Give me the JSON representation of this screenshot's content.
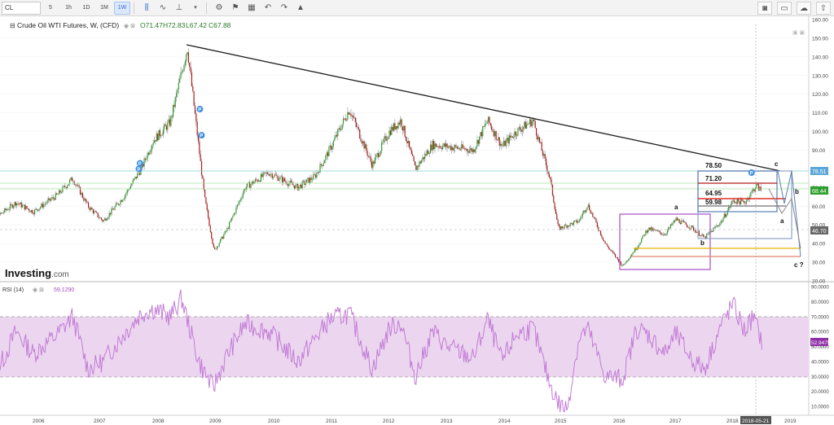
{
  "toolbar": {
    "symbol": "CL",
    "intervals": [
      "5",
      "1h",
      "1D",
      "1W"
    ],
    "extra_label": "1M",
    "active_interval": "1W",
    "icons": [
      "bar-style-icon",
      "indicators-icon",
      "compare-icon",
      "settings-icon",
      "alert-icon",
      "layout-icon",
      "undo-icon",
      "redo-icon",
      "tree-icon"
    ],
    "right_icons": [
      "camera-icon",
      "chart-layout-icon",
      "cloud-icon",
      "cloud-upload-icon"
    ]
  },
  "header": {
    "title": "Crude Oil WTI Futures, W, (CFD)",
    "open": "O71.47",
    "high": "H72.83",
    "low": "L67.42",
    "close": "C67.88"
  },
  "watermark": {
    "brand": "Investing",
    "suffix": ".com"
  },
  "rsi_header": {
    "label": "RSI (14)",
    "value": "59.1290"
  },
  "colors": {
    "up": "#2ca02c",
    "down": "#b11c1c",
    "rsi_line": "#c27bd6",
    "rsi_band": "#ecd6ef",
    "trendline": "#222222",
    "box_purple": "#a64cc4",
    "box_blue": "#5b7fb5",
    "accent": "#3d8fe0"
  },
  "chart_data": [
    {
      "type": "candlestick",
      "title": "Crude Oil WTI Futures, W, (CFD)",
      "x_ticks": [
        "2006",
        "2007",
        "2008",
        "2009",
        "2010",
        "2011",
        "2012",
        "2013",
        "2014",
        "2015",
        "2016",
        "2017",
        "2018",
        "2018-05-21",
        "2019"
      ],
      "y_ticks": [
        20,
        30,
        40,
        50,
        60,
        70,
        80,
        90,
        100,
        110,
        120,
        130,
        140,
        150,
        160
      ],
      "y_tick_labels": [
        "20.00",
        "30.00",
        "40.00",
        "50.00",
        "60.00",
        "70.00",
        "80.00",
        "90.00",
        "100.00",
        "110.00",
        "120.00",
        "130.00",
        "140.00",
        "150.00",
        "160.00"
      ],
      "ylim": [
        20,
        160
      ],
      "price_path": [
        [
          2005.0,
          58
        ],
        [
          2005.3,
          55
        ],
        [
          2005.6,
          62
        ],
        [
          2005.9,
          57
        ],
        [
          2006.3,
          66
        ],
        [
          2006.55,
          75
        ],
        [
          2006.8,
          60
        ],
        [
          2007.05,
          52
        ],
        [
          2007.4,
          65
        ],
        [
          2007.7,
          80
        ],
        [
          2007.9,
          95
        ],
        [
          2008.2,
          105
        ],
        [
          2008.5,
          145
        ],
        [
          2008.8,
          65
        ],
        [
          2008.97,
          36
        ],
        [
          2009.2,
          48
        ],
        [
          2009.5,
          70
        ],
        [
          2009.9,
          78
        ],
        [
          2010.4,
          70
        ],
        [
          2010.7,
          76
        ],
        [
          2010.95,
          90
        ],
        [
          2011.3,
          112
        ],
        [
          2011.7,
          82
        ],
        [
          2012.0,
          100
        ],
        [
          2012.2,
          106
        ],
        [
          2012.45,
          80
        ],
        [
          2012.75,
          93
        ],
        [
          2013.0,
          92
        ],
        [
          2013.45,
          90
        ],
        [
          2013.7,
          106
        ],
        [
          2013.95,
          92
        ],
        [
          2014.2,
          100
        ],
        [
          2014.5,
          106
        ],
        [
          2014.8,
          75
        ],
        [
          2014.95,
          48
        ],
        [
          2015.3,
          52
        ],
        [
          2015.45,
          61
        ],
        [
          2015.75,
          40
        ],
        [
          2016.05,
          28
        ],
        [
          2016.3,
          38
        ],
        [
          2016.5,
          48
        ],
        [
          2016.8,
          45
        ],
        [
          2017.0,
          53
        ],
        [
          2017.3,
          48
        ],
        [
          2017.5,
          43
        ],
        [
          2017.8,
          52
        ],
        [
          2018.0,
          63
        ],
        [
          2018.2,
          62
        ],
        [
          2018.4,
          71
        ],
        [
          2018.5,
          68
        ]
      ],
      "horizontal_levels": [
        {
          "label": "78.50",
          "value": 78.5
        },
        {
          "label": "71.20",
          "value": 71.2
        },
        {
          "label": "64.95",
          "value": 64.95
        },
        {
          "label": "59.98",
          "value": 59.98
        }
      ],
      "wave_labels": [
        "a",
        "b",
        "c",
        "a",
        "b",
        "c ?",
        "b"
      ],
      "price_tags": [
        {
          "label": "78.51",
          "value": 78.51
        },
        {
          "label": "68.44",
          "value": 68.44
        },
        {
          "label": "46.70",
          "value": 46.7
        }
      ],
      "markers": [
        "P",
        "P",
        "P",
        "P",
        "P"
      ]
    },
    {
      "type": "line",
      "title": "RSI (14)",
      "y_ticks": [
        10,
        20,
        30,
        40,
        50,
        60,
        70,
        80,
        90
      ],
      "y_tick_labels": [
        "10.0000",
        "20.0000",
        "30.0000",
        "40.0000",
        "50.0000",
        "60.0000",
        "70.0000",
        "80.0000",
        "90.0000"
      ],
      "ylim": [
        5,
        95
      ],
      "band": [
        30,
        70
      ],
      "last_value_tags": [
        "59.1290",
        "52.9475"
      ],
      "rsi_path": [
        [
          2005.0,
          50
        ],
        [
          2005.3,
          35
        ],
        [
          2005.6,
          60
        ],
        [
          2005.9,
          45
        ],
        [
          2006.3,
          58
        ],
        [
          2006.55,
          70
        ],
        [
          2006.8,
          35
        ],
        [
          2007.05,
          40
        ],
        [
          2007.4,
          58
        ],
        [
          2007.7,
          72
        ],
        [
          2007.9,
          75
        ],
        [
          2008.2,
          70
        ],
        [
          2008.4,
          82
        ],
        [
          2008.7,
          40
        ],
        [
          2008.95,
          22
        ],
        [
          2009.2,
          45
        ],
        [
          2009.5,
          65
        ],
        [
          2009.9,
          60
        ],
        [
          2010.4,
          40
        ],
        [
          2010.7,
          55
        ],
        [
          2010.95,
          68
        ],
        [
          2011.3,
          72
        ],
        [
          2011.7,
          35
        ],
        [
          2012.0,
          62
        ],
        [
          2012.2,
          66
        ],
        [
          2012.45,
          30
        ],
        [
          2012.75,
          60
        ],
        [
          2013.0,
          50
        ],
        [
          2013.45,
          42
        ],
        [
          2013.7,
          68
        ],
        [
          2013.95,
          40
        ],
        [
          2014.2,
          58
        ],
        [
          2014.5,
          62
        ],
        [
          2014.8,
          25
        ],
        [
          2014.95,
          12
        ],
        [
          2015.1,
          8
        ],
        [
          2015.3,
          55
        ],
        [
          2015.45,
          62
        ],
        [
          2015.75,
          30
        ],
        [
          2016.05,
          28
        ],
        [
          2016.3,
          62
        ],
        [
          2016.5,
          58
        ],
        [
          2016.8,
          45
        ],
        [
          2017.0,
          58
        ],
        [
          2017.3,
          40
        ],
        [
          2017.5,
          35
        ],
        [
          2017.8,
          65
        ],
        [
          2018.0,
          78
        ],
        [
          2018.2,
          60
        ],
        [
          2018.35,
          70
        ],
        [
          2018.5,
          53
        ]
      ]
    }
  ]
}
